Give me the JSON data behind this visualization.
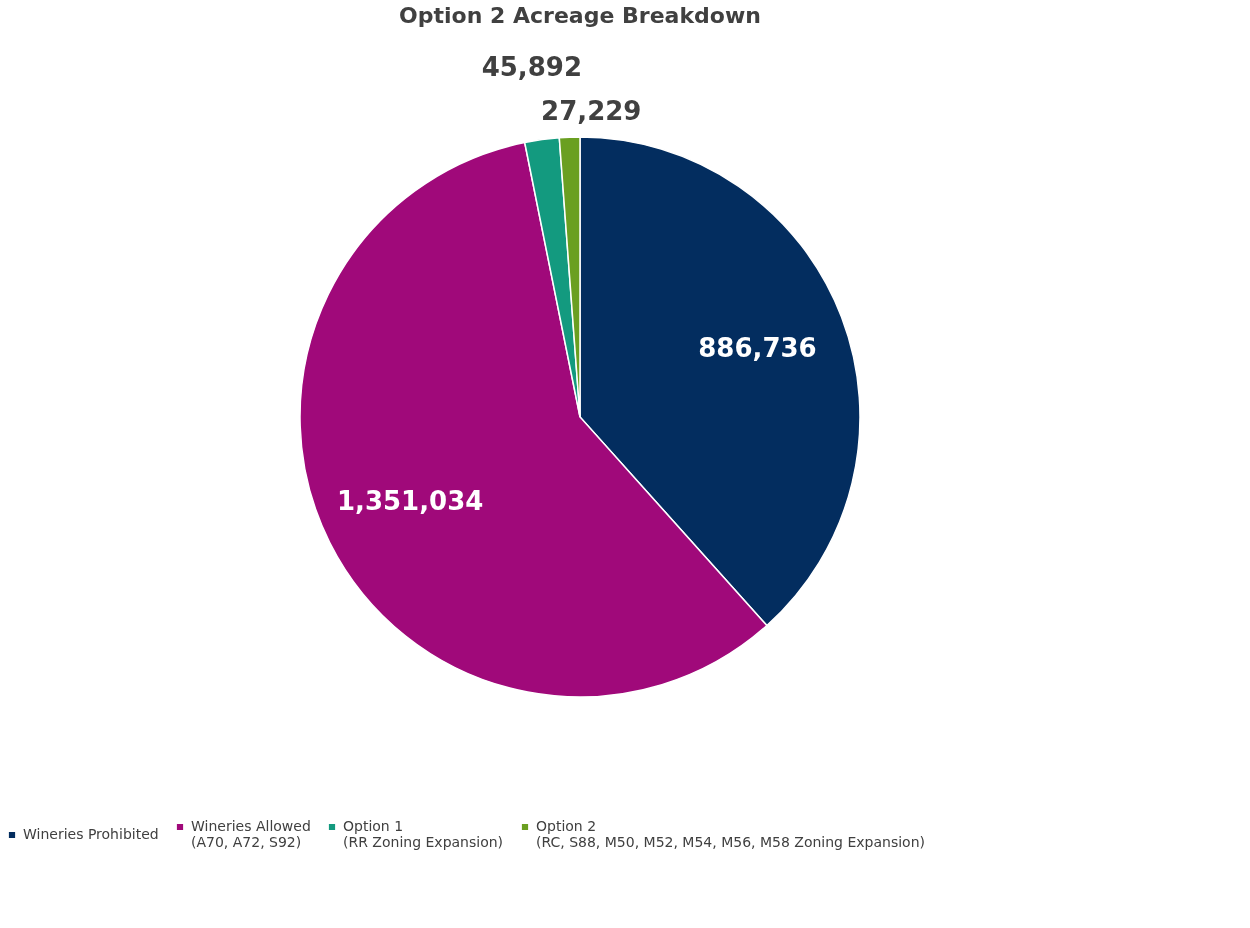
{
  "chart_data": {
    "type": "pie",
    "title": "Option 2 Acreage Breakdown",
    "categories": [
      "Wineries Prohibited",
      "Wineries Allowed\n(A70, A72, S92)",
      "Option 1\n(RR Zoning Expansion)",
      "Option 2\n(RC, S88, M50, M52, M54, M56, M58 Zoning Expansion)"
    ],
    "values": [
      886736,
      1351034,
      45892,
      27229
    ],
    "colors": [
      "#032d5f",
      "#a0097a",
      "#139a7f",
      "#6a9f21"
    ],
    "value_labels": [
      "886,736",
      "1,351,034",
      "45,892",
      "27,229"
    ],
    "legend": "bottom"
  }
}
